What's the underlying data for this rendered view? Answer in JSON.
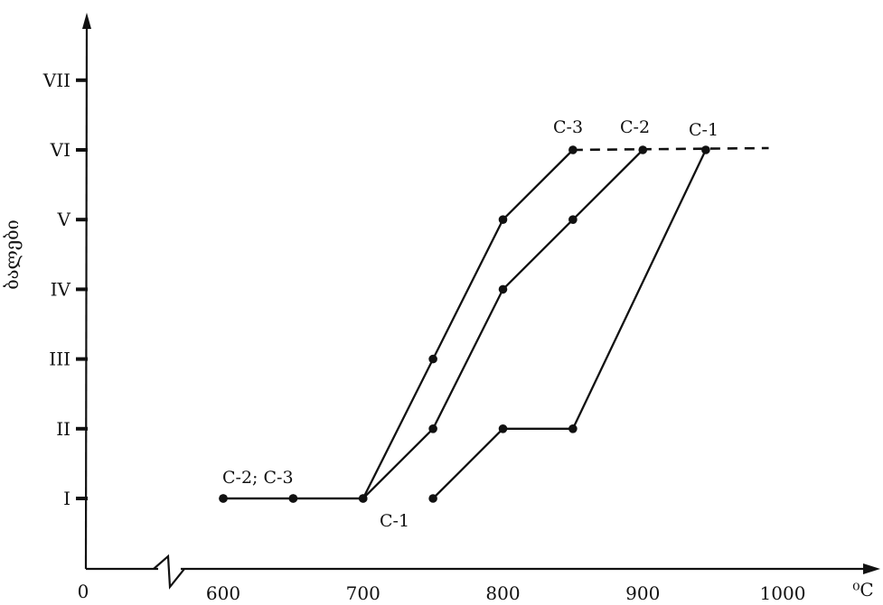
{
  "chart_data": {
    "type": "line",
    "ylabel": "ბალები",
    "xlabel": "⁰C",
    "x_axis_origin_label": "0",
    "x_axis_break": true,
    "xlim": [
      600,
      1000
    ],
    "x_ticks": [
      600,
      700,
      800,
      900,
      1000
    ],
    "y_categories": [
      "I",
      "II",
      "III",
      "IV",
      "V",
      "VI",
      "VII"
    ],
    "grid": false,
    "series": [
      {
        "name": "C-1",
        "x": [
          750,
          800,
          850,
          945
        ],
        "y": [
          1,
          2,
          2,
          6
        ]
      },
      {
        "name": "C-2",
        "x": [
          600,
          650,
          700,
          750,
          800,
          850,
          900
        ],
        "y": [
          1,
          1,
          1,
          2,
          4,
          5,
          6
        ]
      },
      {
        "name": "C-3",
        "x": [
          600,
          650,
          700,
          750,
          800,
          850
        ],
        "y": [
          1,
          1,
          1,
          3,
          5,
          6
        ]
      }
    ],
    "dashed_extension": {
      "y": 6,
      "x_from": 850,
      "x_to": 990
    },
    "annotations": [
      "C-2; C-3",
      "C-1",
      "C-3",
      "C-2",
      "C-1"
    ]
  }
}
